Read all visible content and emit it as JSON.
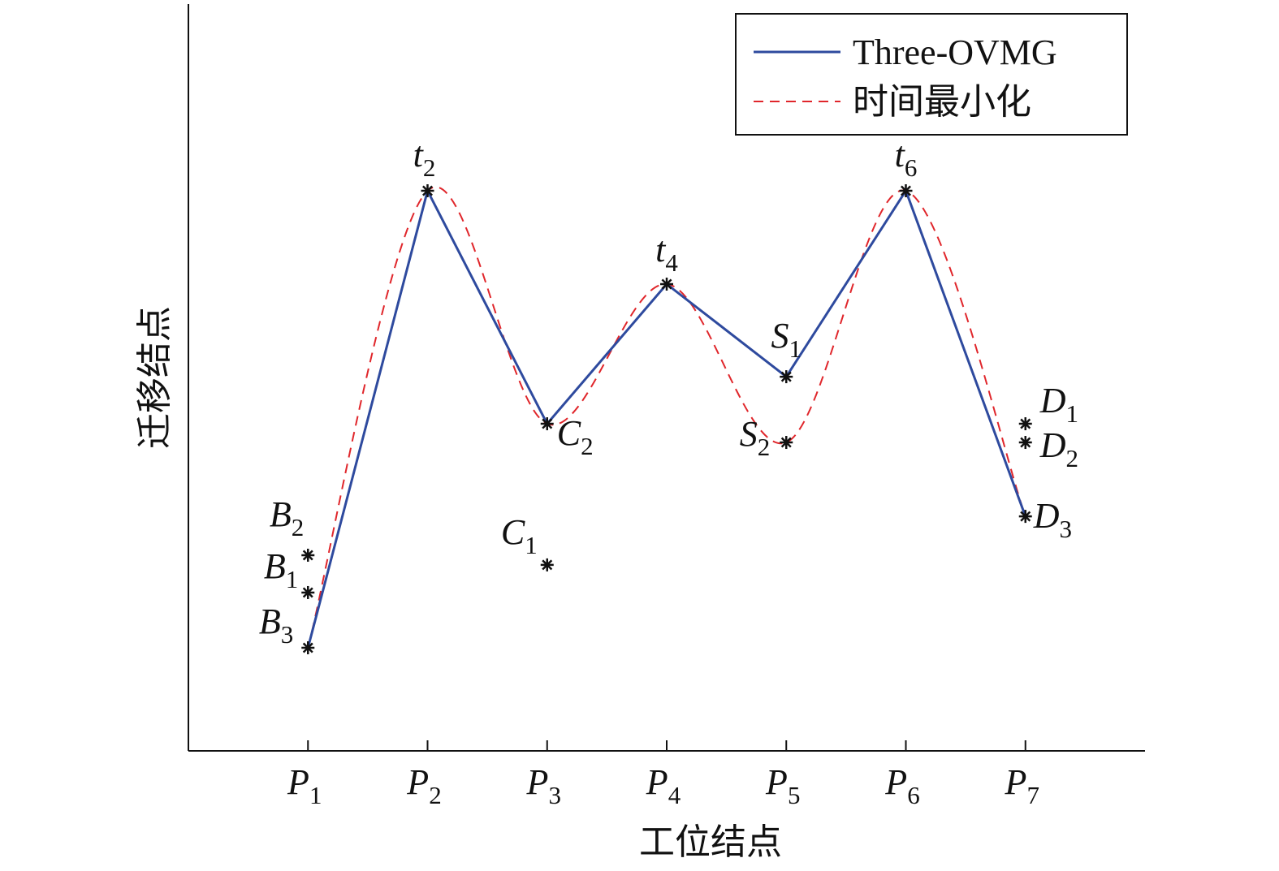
{
  "chart_data": {
    "type": "line",
    "x_label": "工位结点",
    "y_label": "迁移结点",
    "categories": [
      "P1",
      "P2",
      "P3",
      "P4",
      "P5",
      "P6",
      "P7"
    ],
    "ylim": [
      0,
      100
    ],
    "series": [
      {
        "name": "Three-OVMG",
        "color": "#2e4a9e",
        "dash": false,
        "smooth": false,
        "values": [
          13.8,
          75.0,
          43.8,
          62.5,
          50.1,
          75.0,
          31.4
        ]
      },
      {
        "name": "时间最小化",
        "color": "#e0262b",
        "dash": true,
        "smooth": true,
        "values": [
          13.8,
          75.0,
          43.8,
          62.5,
          41.3,
          75.0,
          31.4
        ]
      }
    ],
    "points": [
      {
        "label": "B2",
        "x": "P1",
        "y": 26.2
      },
      {
        "label": "B1",
        "x": "P1",
        "y": 21.2
      },
      {
        "label": "B3",
        "x": "P1",
        "y": 13.8
      },
      {
        "label": "t2",
        "x": "P2",
        "y": 75.0
      },
      {
        "label": "C2",
        "x": "P3",
        "y": 43.8
      },
      {
        "label": "C1",
        "x": "P3",
        "y": 24.9
      },
      {
        "label": "t4",
        "x": "P4",
        "y": 62.5
      },
      {
        "label": "S1",
        "x": "P5",
        "y": 50.1
      },
      {
        "label": "S2",
        "x": "P5",
        "y": 41.3
      },
      {
        "label": "t6",
        "x": "P6",
        "y": 75.0
      },
      {
        "label": "D1",
        "x": "P7",
        "y": 43.8
      },
      {
        "label": "D2",
        "x": "P7",
        "y": 41.3
      },
      {
        "label": "D3",
        "x": "P7",
        "y": 31.4
      }
    ],
    "legend": "upper right"
  }
}
